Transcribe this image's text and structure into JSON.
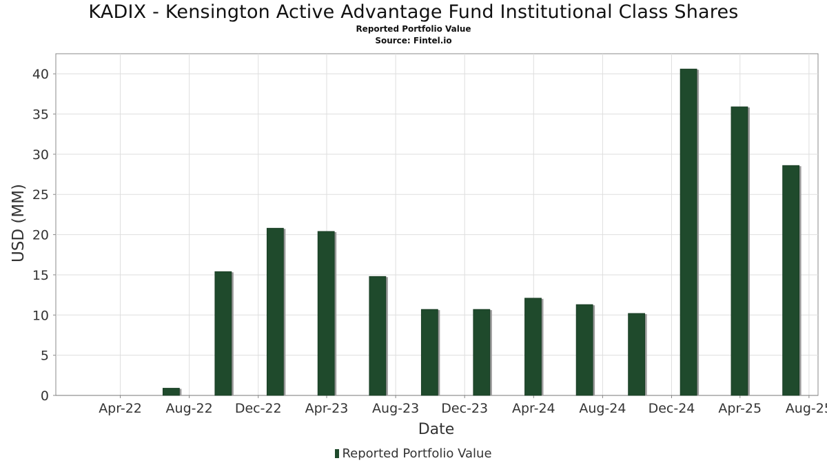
{
  "chart_data": {
    "type": "bar",
    "title": "KADIX - Kensington Active Advantage Fund Institutional Class Shares",
    "subtitle": "Reported Portfolio Value",
    "source": "Source: Fintel.io",
    "xlabel": "Date",
    "ylabel": "USD (MM)",
    "ylim": [
      0,
      42.5
    ],
    "yticks": [
      0,
      5,
      10,
      15,
      20,
      25,
      30,
      35,
      40
    ],
    "x_tick_labels": [
      "Apr-22",
      "Aug-22",
      "Dec-22",
      "Apr-23",
      "Aug-23",
      "Dec-23",
      "Apr-24",
      "Aug-24",
      "Dec-24",
      "Apr-25",
      "Aug-25"
    ],
    "x_tick_dates": [
      "2022-04-01",
      "2022-08-01",
      "2022-12-01",
      "2023-04-01",
      "2023-08-01",
      "2023-12-01",
      "2024-04-01",
      "2024-08-01",
      "2024-12-01",
      "2025-04-01",
      "2025-08-01"
    ],
    "x_range": [
      "2021-12-08",
      "2025-08-17"
    ],
    "grid": true,
    "legend_position": "bottom",
    "bar_color": "#1f4a2c",
    "series": [
      {
        "name": "Reported Portfolio Value",
        "points": [
          {
            "x": "2022-06-30",
            "y": 0.9
          },
          {
            "x": "2022-09-30",
            "y": 15.4
          },
          {
            "x": "2022-12-31",
            "y": 20.8
          },
          {
            "x": "2023-03-31",
            "y": 20.4
          },
          {
            "x": "2023-06-30",
            "y": 14.8
          },
          {
            "x": "2023-09-30",
            "y": 10.7
          },
          {
            "x": "2023-12-31",
            "y": 10.7
          },
          {
            "x": "2024-03-31",
            "y": 12.1
          },
          {
            "x": "2024-06-30",
            "y": 11.3
          },
          {
            "x": "2024-09-30",
            "y": 10.2
          },
          {
            "x": "2024-12-31",
            "y": 40.6
          },
          {
            "x": "2025-03-31",
            "y": 35.9
          },
          {
            "x": "2025-06-30",
            "y": 28.6
          }
        ]
      }
    ]
  }
}
